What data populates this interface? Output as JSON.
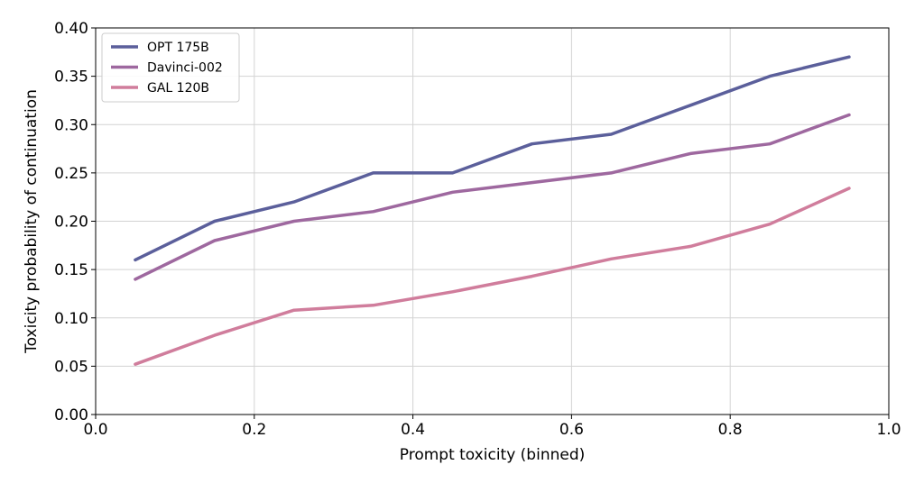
{
  "chart_data": {
    "type": "line",
    "xlabel": "Prompt toxicity (binned)",
    "ylabel": "Toxicity probability of continuation",
    "xlim": [
      0.0,
      1.0
    ],
    "ylim": [
      0.0,
      0.4
    ],
    "xticks": [
      0.0,
      0.2,
      0.4,
      0.6,
      0.8,
      1.0
    ],
    "xtick_labels": [
      "0.0",
      "0.2",
      "0.4",
      "0.6",
      "0.8",
      "1.0"
    ],
    "yticks": [
      0.0,
      0.05,
      0.1,
      0.15,
      0.2,
      0.25,
      0.3,
      0.35,
      0.4
    ],
    "ytick_labels": [
      "0.00",
      "0.05",
      "0.10",
      "0.15",
      "0.20",
      "0.25",
      "0.30",
      "0.35",
      "0.40"
    ],
    "grid": true,
    "legend_position": "top-left",
    "x": [
      0.05,
      0.15,
      0.25,
      0.35,
      0.45,
      0.55,
      0.65,
      0.75,
      0.85,
      0.95
    ],
    "series": [
      {
        "name": "OPT 175B",
        "color": "#5b5f9b",
        "values": [
          0.16,
          0.2,
          0.22,
          0.25,
          0.25,
          0.28,
          0.29,
          0.32,
          0.35,
          0.37
        ]
      },
      {
        "name": "Davinci-002",
        "color": "#9e689f",
        "values": [
          0.14,
          0.18,
          0.2,
          0.21,
          0.23,
          0.24,
          0.25,
          0.27,
          0.28,
          0.31
        ]
      },
      {
        "name": "GAL 120B",
        "color": "#d07d9c",
        "values": [
          0.052,
          0.082,
          0.108,
          0.113,
          0.127,
          0.143,
          0.161,
          0.174,
          0.197,
          0.234
        ]
      }
    ]
  }
}
